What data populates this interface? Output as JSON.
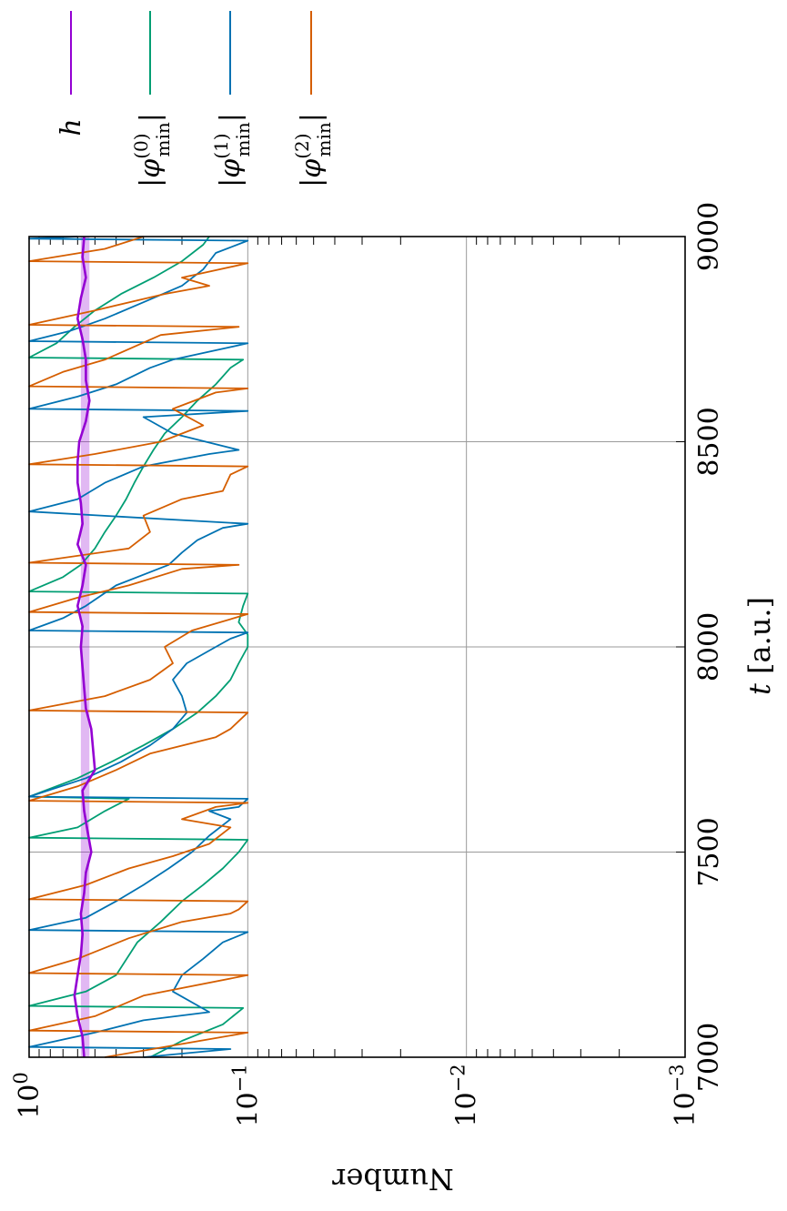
{
  "chart_data": {
    "type": "line",
    "orientation": "rotated-90-clockwise",
    "xlabel": "t [a.u.]",
    "ylabel": "Number",
    "xlim": [
      7000,
      9000
    ],
    "ylim": [
      0.001,
      1
    ],
    "y_scale": "log",
    "grid": true,
    "x_ticks": [
      "7000",
      "7500",
      "8000",
      "8500",
      "9000"
    ],
    "y_ticks": [
      {
        "value": 1,
        "base": "10",
        "exp": "0"
      },
      {
        "value": 0.1,
        "base": "10",
        "exp": "−1"
      },
      {
        "value": 0.01,
        "base": "10",
        "exp": "−2"
      },
      {
        "value": 0.001,
        "base": "10",
        "exp": "−3"
      }
    ],
    "legend_position": "top (right of plot when unrotated)",
    "series": [
      {
        "name": "h",
        "legend_display": {
          "main": "h",
          "sup": "",
          "sub": ""
        },
        "color": "#9400d3",
        "band": [
          0.53,
          0.58
        ],
        "x": [
          7000,
          7050,
          7100,
          7150,
          7200,
          7250,
          7300,
          7350,
          7400,
          7450,
          7500,
          7550,
          7600,
          7650,
          7700,
          7750,
          7800,
          7850,
          7900,
          7950,
          8000,
          8050,
          8100,
          8150,
          8200,
          8250,
          8300,
          8350,
          8400,
          8450,
          8500,
          8550,
          8600,
          8650,
          8700,
          8750,
          8800,
          8850,
          8900,
          8950,
          9000
        ],
        "values": [
          0.56,
          0.57,
          0.6,
          0.62,
          0.6,
          0.58,
          0.57,
          0.58,
          0.56,
          0.55,
          0.52,
          0.54,
          0.56,
          0.57,
          0.5,
          0.51,
          0.52,
          0.55,
          0.56,
          0.57,
          0.58,
          0.57,
          0.6,
          0.57,
          0.55,
          0.6,
          0.57,
          0.58,
          0.6,
          0.6,
          0.59,
          0.55,
          0.53,
          0.55,
          0.55,
          0.57,
          0.6,
          0.58,
          0.55,
          0.57,
          0.56
        ]
      },
      {
        "name": "|φ_min^(0)|",
        "legend_display": {
          "main": "|φ",
          "sup": "(0)",
          "sub": "min",
          "close": "|"
        },
        "color": "#009e73",
        "x": [
          7000,
          7040,
          7080,
          7120,
          7125,
          7160,
          7200,
          7280,
          7330,
          7380,
          7420,
          7460,
          7500,
          7530,
          7535,
          7560,
          7600,
          7630,
          7635,
          7680,
          7720,
          7760,
          7800,
          7840,
          7880,
          7920,
          7960,
          8000,
          8030,
          8060,
          8100,
          8130,
          8135,
          8170,
          8200,
          8240,
          8280,
          8320,
          8360,
          8400,
          8440,
          8480,
          8520,
          8560,
          8600,
          8640,
          8680,
          8700,
          8705,
          8740,
          8780,
          8820,
          8860,
          8900,
          8940,
          8980,
          9000
        ],
        "values": [
          0.28,
          0.2,
          0.13,
          0.105,
          1,
          0.55,
          0.4,
          0.32,
          0.25,
          0.2,
          0.16,
          0.13,
          0.11,
          0.1,
          1,
          0.6,
          0.45,
          0.35,
          1,
          0.6,
          0.42,
          0.3,
          0.22,
          0.17,
          0.14,
          0.12,
          0.11,
          0.1,
          0.1,
          0.11,
          0.105,
          0.1,
          1,
          0.7,
          0.58,
          0.5,
          0.45,
          0.4,
          0.36,
          0.33,
          0.3,
          0.27,
          0.24,
          0.2,
          0.17,
          0.14,
          0.12,
          0.105,
          1,
          0.75,
          0.62,
          0.5,
          0.38,
          0.27,
          0.2,
          0.16,
          0.15
        ]
      },
      {
        "name": "|φ_min^(1)|",
        "legend_display": {
          "main": "|φ",
          "sup": "(1)",
          "sub": "min",
          "close": "|"
        },
        "color": "#0072b2",
        "x": [
          7000,
          7020,
          7025,
          7060,
          7090,
          7110,
          7160,
          7200,
          7240,
          7280,
          7305,
          7310,
          7340,
          7380,
          7420,
          7460,
          7500,
          7540,
          7580,
          7600,
          7610,
          7630,
          7635,
          7680,
          7720,
          7760,
          7800,
          7840,
          7880,
          7920,
          7960,
          8000,
          8020,
          8035,
          8040,
          8070,
          8100,
          8150,
          8200,
          8230,
          8260,
          8290,
          8300,
          8330,
          8360,
          8400,
          8440,
          8470,
          8480,
          8520,
          8560,
          8575,
          8580,
          8610,
          8640,
          8680,
          8700,
          8740,
          8745,
          8770,
          8800,
          8840,
          8880,
          8920,
          8960,
          8990,
          8995,
          9000
        ],
        "values": [
          0.3,
          0.12,
          1,
          0.5,
          0.3,
          0.15,
          0.22,
          0.2,
          0.16,
          0.13,
          0.1,
          1,
          0.55,
          0.4,
          0.3,
          0.23,
          0.18,
          0.15,
          0.12,
          0.15,
          0.11,
          0.1,
          1,
          0.55,
          0.38,
          0.28,
          0.22,
          0.19,
          0.2,
          0.22,
          0.19,
          0.14,
          0.12,
          0.1,
          1,
          0.7,
          0.55,
          0.4,
          0.23,
          0.2,
          0.17,
          0.13,
          0.1,
          1,
          0.6,
          0.45,
          0.3,
          0.15,
          0.11,
          0.22,
          0.3,
          0.1,
          1,
          0.6,
          0.4,
          0.28,
          0.22,
          0.1,
          1,
          0.65,
          0.45,
          0.3,
          0.2,
          0.16,
          0.14,
          0.1,
          1,
          0.6
        ]
      },
      {
        "name": "|φ_min^(2)|",
        "legend_display": {
          "main": "|φ",
          "sup": "(2)",
          "sub": "min",
          "close": "|"
        },
        "color": "#d55e00",
        "x": [
          7000,
          7060,
          7065,
          7100,
          7150,
          7200,
          7205,
          7240,
          7290,
          7330,
          7350,
          7360,
          7380,
          7385,
          7420,
          7460,
          7490,
          7520,
          7560,
          7580,
          7610,
          7620,
          7625,
          7660,
          7700,
          7740,
          7780,
          7800,
          7840,
          7845,
          7880,
          7920,
          7960,
          8000,
          8040,
          8080,
          8085,
          8120,
          8150,
          8190,
          8200,
          8205,
          8240,
          8280,
          8320,
          8360,
          8380,
          8420,
          8440,
          8445,
          8470,
          8500,
          8540,
          8580,
          8620,
          8630,
          8635,
          8670,
          8700,
          8760,
          8780,
          8785,
          8820,
          8860,
          8880,
          8900,
          8935,
          8940,
          8970,
          9000
        ],
        "values": [
          0.45,
          0.1,
          1,
          0.5,
          0.3,
          0.1,
          1,
          0.6,
          0.35,
          0.2,
          0.12,
          0.11,
          0.1,
          1,
          0.55,
          0.35,
          0.22,
          0.15,
          0.12,
          0.2,
          0.14,
          0.1,
          1,
          0.6,
          0.4,
          0.28,
          0.14,
          0.12,
          0.1,
          1,
          0.45,
          0.28,
          0.22,
          0.24,
          0.18,
          0.1,
          1,
          0.6,
          0.35,
          0.2,
          0.11,
          1,
          0.35,
          0.28,
          0.3,
          0.2,
          0.13,
          0.12,
          0.1,
          1,
          0.5,
          0.25,
          0.16,
          0.22,
          0.14,
          0.1,
          1,
          0.7,
          0.45,
          0.25,
          0.11,
          1,
          0.5,
          0.24,
          0.15,
          0.2,
          0.1,
          1,
          0.45,
          0.3
        ]
      }
    ]
  }
}
